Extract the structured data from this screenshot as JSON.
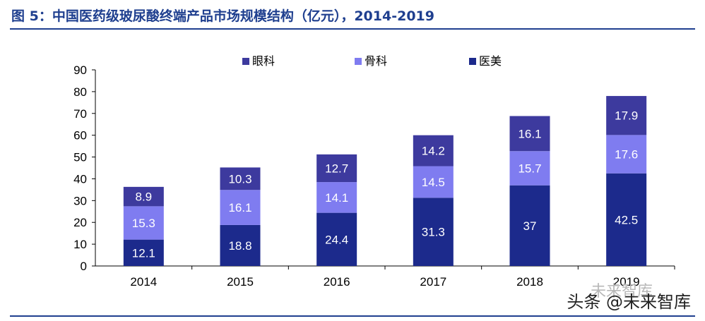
{
  "title": "图 5：中国医药级玻尿酸终端产品市场规模结构（亿元），2014-2019",
  "watermark": "头条 @未来智库",
  "watermark_faint": "未来智库",
  "chart_data": {
    "type": "bar",
    "stacked": true,
    "categories": [
      "2014",
      "2015",
      "2016",
      "2017",
      "2018",
      "2019"
    ],
    "series": [
      {
        "name": "医美",
        "color": "#1c2a8c",
        "values": [
          12.1,
          18.8,
          24.4,
          31.3,
          37,
          42.5
        ],
        "labels": [
          "12.1",
          "18.8",
          "24.4",
          "31.3",
          "37",
          "42.5"
        ]
      },
      {
        "name": "骨科",
        "color": "#7f7cf0",
        "values": [
          15.3,
          16.1,
          14.1,
          14.5,
          15.7,
          17.6
        ],
        "labels": [
          "15.3",
          "16.1",
          "14.1",
          "14.5",
          "15.7",
          "17.6"
        ]
      },
      {
        "name": "眼科",
        "color": "#3d3a9e",
        "values": [
          8.9,
          10.3,
          12.7,
          14.2,
          16.1,
          17.9
        ],
        "labels": [
          "8.9",
          "10.3",
          "12.7",
          "14.2",
          "16.1",
          "17.9"
        ]
      }
    ],
    "legend_order": [
      "眼科",
      "骨科",
      "医美"
    ],
    "legend_position": "top",
    "ylim": [
      0,
      90
    ],
    "yticks": [
      "0",
      "10",
      "20",
      "30",
      "40",
      "50",
      "60",
      "70",
      "80",
      "90"
    ],
    "grid": false
  }
}
